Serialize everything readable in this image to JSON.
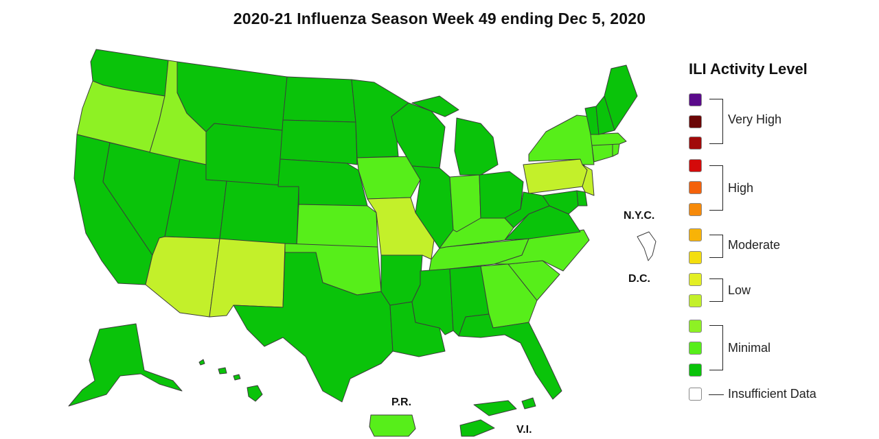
{
  "title": "2020-21 Influenza Season Week 49 ending Dec 5, 2020",
  "colors": {
    "minimal_dark": "#0ac30a",
    "minimal_mid": "#57ee1a",
    "minimal_light": "#8ef124",
    "low_light": "#c3f02a",
    "low_dark": "#e3ef24",
    "moderate_yellow": "#f4de0e",
    "moderate_orange": "#f8b307",
    "high_orange": "#f68a0a",
    "high_darkorange": "#f4620b",
    "high_red": "#d40a0a",
    "veryhigh_red": "#a10a0a",
    "veryhigh_maroon": "#6b0606",
    "veryhigh_purple": "#5a0a8a",
    "insufficient": "#ffffff"
  },
  "labels": {
    "nyc": "N.Y.C.",
    "dc": "D.C.",
    "pr": "P.R.",
    "vi": "V.I."
  },
  "legend": {
    "title": "ILI Activity Level",
    "levels": [
      {
        "name": "Very High",
        "colors": [
          "#5a0a8a",
          "#6b0606",
          "#a10a0a"
        ]
      },
      {
        "name": "High",
        "colors": [
          "#d40a0a",
          "#f4620b",
          "#f68a0a"
        ]
      },
      {
        "name": "Moderate",
        "colors": [
          "#f8b307",
          "#f4de0e"
        ]
      },
      {
        "name": "Low",
        "colors": [
          "#e3ef24",
          "#c3f02a"
        ]
      },
      {
        "name": "Minimal",
        "colors": [
          "#8ef124",
          "#57ee1a",
          "#0ac30a"
        ]
      }
    ],
    "insufficient": "Insufficient Data"
  },
  "state_levels": {
    "WA": "minimal_dark",
    "OR": "minimal_light",
    "CA": "minimal_dark",
    "NV": "minimal_dark",
    "ID": "minimal_light",
    "MT": "minimal_dark",
    "WY": "minimal_dark",
    "UT": "minimal_dark",
    "AZ": "low_light",
    "CO": "minimal_dark",
    "NM": "low_light",
    "ND": "minimal_dark",
    "SD": "minimal_dark",
    "NE": "minimal_dark",
    "KS": "minimal_mid",
    "OK": "minimal_mid",
    "TX": "minimal_dark",
    "MN": "minimal_dark",
    "IA": "minimal_mid",
    "MO": "low_light",
    "AR": "minimal_dark",
    "LA": "minimal_dark",
    "WI": "minimal_dark",
    "IL": "minimal_dark",
    "MI": "minimal_dark",
    "IN": "minimal_mid",
    "OH": "minimal_dark",
    "KY": "minimal_mid",
    "TN": "minimal_mid",
    "MS": "minimal_dark",
    "AL": "minimal_dark",
    "GA": "minimal_mid",
    "FL": "minimal_dark",
    "SC": "minimal_mid",
    "NC": "minimal_mid",
    "VA": "minimal_dark",
    "WV": "minimal_dark",
    "MD": "minimal_dark",
    "DE": "minimal_dark",
    "PA": "low_light",
    "NJ": "low_light",
    "NY": "minimal_mid",
    "CT": "minimal_mid",
    "RI": "minimal_mid",
    "MA": "minimal_mid",
    "VT": "minimal_dark",
    "NH": "minimal_dark",
    "ME": "minimal_dark",
    "AK": "minimal_dark",
    "HI": "minimal_dark",
    "PR": "minimal_mid",
    "VI": "minimal_dark",
    "NYC": "insufficient",
    "DC": "insufficient"
  }
}
